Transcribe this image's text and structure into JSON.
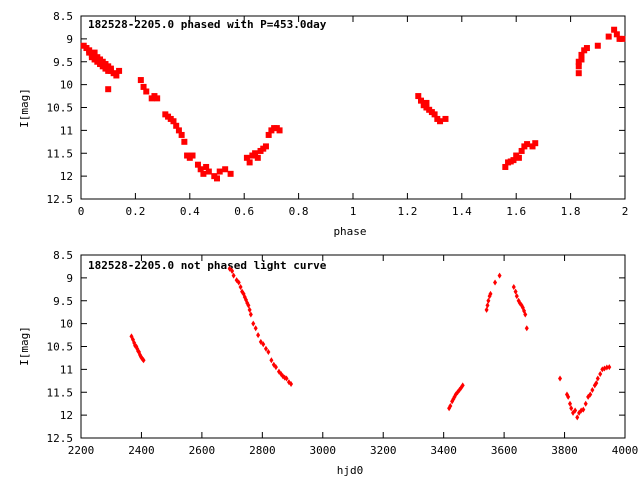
{
  "chart_data": [
    {
      "type": "scatter",
      "title": "182528-2205.0 phased with P=453.0day",
      "xlabel": "phase",
      "ylabel": "I[mag]",
      "xlim": [
        0,
        2
      ],
      "ylim": [
        12.5,
        8.5
      ],
      "y_inverted": true,
      "xticks": [
        "0",
        "0.2",
        "0.4",
        "0.6",
        "0.8",
        "1",
        "1.2",
        "1.4",
        "1.6",
        "1.8",
        "2"
      ],
      "yticks": [
        "8.5",
        "9",
        "9.5",
        "10",
        "10.5",
        "11",
        "11.5",
        "12",
        "12.5"
      ],
      "grid": false,
      "marker": "filled-square",
      "color": "#ff0000",
      "series": [
        {
          "x": [
            0.01,
            0.02,
            0.03,
            0.03,
            0.04,
            0.04,
            0.05,
            0.05,
            0.06,
            0.06,
            0.07,
            0.07,
            0.08,
            0.08,
            0.09,
            0.09,
            0.1,
            0.1,
            0.11,
            0.11,
            0.12,
            0.13,
            0.14,
            0.1,
            0.22,
            0.23,
            0.24,
            0.26,
            0.27,
            0.28,
            0.31,
            0.32,
            0.33,
            0.34,
            0.35,
            0.36,
            0.37,
            0.38,
            0.39,
            0.4,
            0.41,
            0.43,
            0.44,
            0.45,
            0.46,
            0.47,
            0.49,
            0.5,
            0.51,
            0.53,
            0.55,
            0.61,
            0.62,
            0.63,
            0.64,
            0.65,
            0.66,
            0.67,
            0.68,
            0.69,
            0.7,
            0.71,
            0.72,
            0.73,
            1.24,
            1.25,
            1.26,
            1.27,
            1.27,
            1.28,
            1.29,
            1.3,
            1.31,
            1.32,
            1.34,
            1.56,
            1.57,
            1.58,
            1.59,
            1.6,
            1.61,
            1.62,
            1.63,
            1.64,
            1.66,
            1.67,
            1.83,
            1.83,
            1.83,
            1.84,
            1.84,
            1.85,
            1.86,
            1.9,
            1.94,
            1.96,
            1.97,
            1.98,
            1.99
          ],
          "y": [
            9.15,
            9.2,
            9.25,
            9.3,
            9.35,
            9.4,
            9.45,
            9.3,
            9.5,
            9.4,
            9.55,
            9.45,
            9.6,
            9.5,
            9.65,
            9.55,
            9.7,
            9.6,
            9.7,
            9.65,
            9.75,
            9.8,
            9.7,
            10.1,
            9.9,
            10.05,
            10.15,
            10.3,
            10.25,
            10.3,
            10.65,
            10.7,
            10.75,
            10.8,
            10.9,
            11.0,
            11.1,
            11.25,
            11.55,
            11.6,
            11.55,
            11.75,
            11.85,
            11.95,
            11.8,
            11.9,
            12.0,
            12.05,
            11.9,
            11.85,
            11.95,
            11.6,
            11.7,
            11.55,
            11.5,
            11.6,
            11.45,
            11.4,
            11.35,
            11.1,
            11.0,
            10.95,
            10.95,
            11.0,
            10.25,
            10.35,
            10.45,
            10.5,
            10.4,
            10.55,
            10.6,
            10.65,
            10.75,
            10.8,
            10.75,
            11.8,
            11.7,
            11.68,
            11.65,
            11.55,
            11.6,
            11.45,
            11.35,
            11.3,
            11.35,
            11.28,
            9.75,
            9.6,
            9.5,
            9.45,
            9.35,
            9.25,
            9.2,
            9.15,
            8.95,
            8.8,
            8.9,
            9.0,
            9.0
          ]
        }
      ]
    },
    {
      "type": "scatter",
      "title": "182528-2205.0 not phased light curve",
      "xlabel": "hjd0",
      "ylabel": "I[mag]",
      "xlim": [
        2200,
        4000
      ],
      "ylim": [
        12.5,
        8.5
      ],
      "y_inverted": true,
      "xticks": [
        "2200",
        "2400",
        "2600",
        "2800",
        "3000",
        "3200",
        "3400",
        "3600",
        "3800",
        "4000"
      ],
      "yticks": [
        "8.5",
        "9",
        "9.5",
        "10",
        "10.5",
        "11",
        "11.5",
        "12",
        "12.5"
      ],
      "grid": false,
      "marker": "diamond",
      "color": "#ff0000",
      "series": [
        {
          "x": [
            2367,
            2372,
            2376,
            2379,
            2383,
            2386,
            2389,
            2392,
            2395,
            2398,
            2401,
            2404,
            2407,
            2692,
            2700,
            2705,
            2715,
            2722,
            2728,
            2733,
            2738,
            2742,
            2746,
            2750,
            2754,
            2758,
            2762,
            2770,
            2778,
            2786,
            2795,
            2803,
            2812,
            2820,
            2830,
            2838,
            2845,
            2855,
            2862,
            2868,
            2874,
            2880,
            2888,
            2895,
            3418,
            3422,
            3428,
            3432,
            3436,
            3440,
            3446,
            3452,
            3458,
            3463,
            3542,
            3545,
            3548,
            3552,
            3555,
            3570,
            3585,
            3632,
            3638,
            3642,
            3648,
            3652,
            3658,
            3662,
            3666,
            3670,
            3675,
            3785,
            3808,
            3812,
            3818,
            3822,
            3828,
            3835,
            3842,
            3848,
            3855,
            3862,
            3870,
            3878,
            3885,
            3892,
            3900,
            3905,
            3910,
            3918,
            3925,
            3932,
            3940,
            3948
          ],
          "y": [
            10.28,
            10.35,
            10.42,
            10.48,
            10.5,
            10.55,
            10.6,
            10.62,
            10.68,
            10.72,
            10.75,
            10.78,
            10.8,
            8.8,
            8.85,
            8.95,
            9.05,
            9.1,
            9.2,
            9.3,
            9.35,
            9.42,
            9.48,
            9.55,
            9.6,
            9.7,
            9.8,
            10.0,
            10.1,
            10.25,
            10.4,
            10.45,
            10.55,
            10.62,
            10.8,
            10.9,
            10.95,
            11.05,
            11.1,
            11.15,
            11.18,
            11.2,
            11.28,
            11.32,
            11.85,
            11.8,
            11.7,
            11.65,
            11.6,
            11.55,
            11.5,
            11.45,
            11.4,
            11.35,
            9.7,
            9.6,
            9.5,
            9.4,
            9.35,
            9.1,
            8.95,
            9.2,
            9.3,
            9.4,
            9.5,
            9.55,
            9.6,
            9.65,
            9.72,
            9.8,
            10.1,
            11.2,
            11.55,
            11.6,
            11.75,
            11.85,
            11.95,
            11.9,
            12.05,
            11.95,
            11.9,
            11.88,
            11.75,
            11.6,
            11.55,
            11.45,
            11.35,
            11.3,
            11.2,
            11.1,
            11.0,
            10.98,
            10.96,
            10.95
          ]
        }
      ]
    }
  ]
}
